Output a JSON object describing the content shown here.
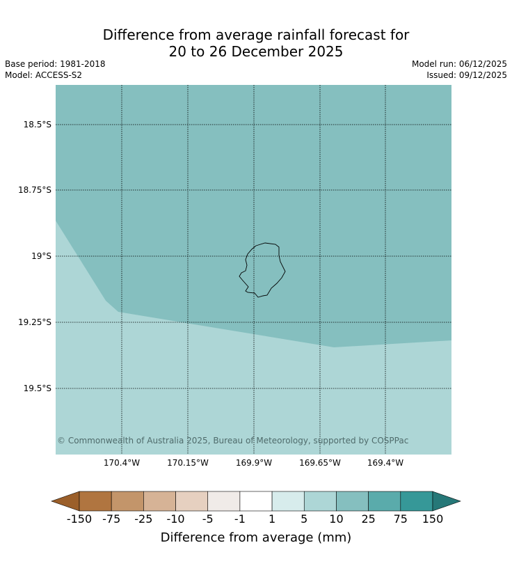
{
  "header": {
    "title_line1": "Difference from average rainfall forecast for",
    "title_line2": "20 to 26 December 2025",
    "base_period": "Base period: 1981-2018",
    "model": "Model: ACCESS-S2",
    "model_run": "Model run: 06/12/2025",
    "issued": "Issued: 09/12/2025"
  },
  "map": {
    "lat_labels": [
      "18.5°S",
      "18.75°S",
      "19°S",
      "19.25°S",
      "19.5°S"
    ],
    "lon_labels": [
      "170.4°W",
      "170.15°W",
      "169.9°W",
      "169.65°W",
      "169.4°W"
    ],
    "copyright": "© Commonwealth of Australia 2025, Bureau of Meteorology, supported by COSPPac",
    "region_colors": {
      "upper_zone": "#85bfbf",
      "lower_zone": "#add6d6"
    }
  },
  "colorbar": {
    "title": "Difference from average (mm)",
    "ticks": [
      "-150",
      "-75",
      "-25",
      "-10",
      "-5",
      "-1",
      "1",
      "5",
      "10",
      "25",
      "75",
      "150"
    ],
    "colors": [
      "#9b5f2a",
      "#b07540",
      "#c3956a",
      "#d6b396",
      "#e6d0c0",
      "#f0ebe8",
      "#ffffff",
      "#d7ecec",
      "#add6d6",
      "#85bfbf",
      "#5aabab",
      "#369898",
      "#267878"
    ]
  }
}
